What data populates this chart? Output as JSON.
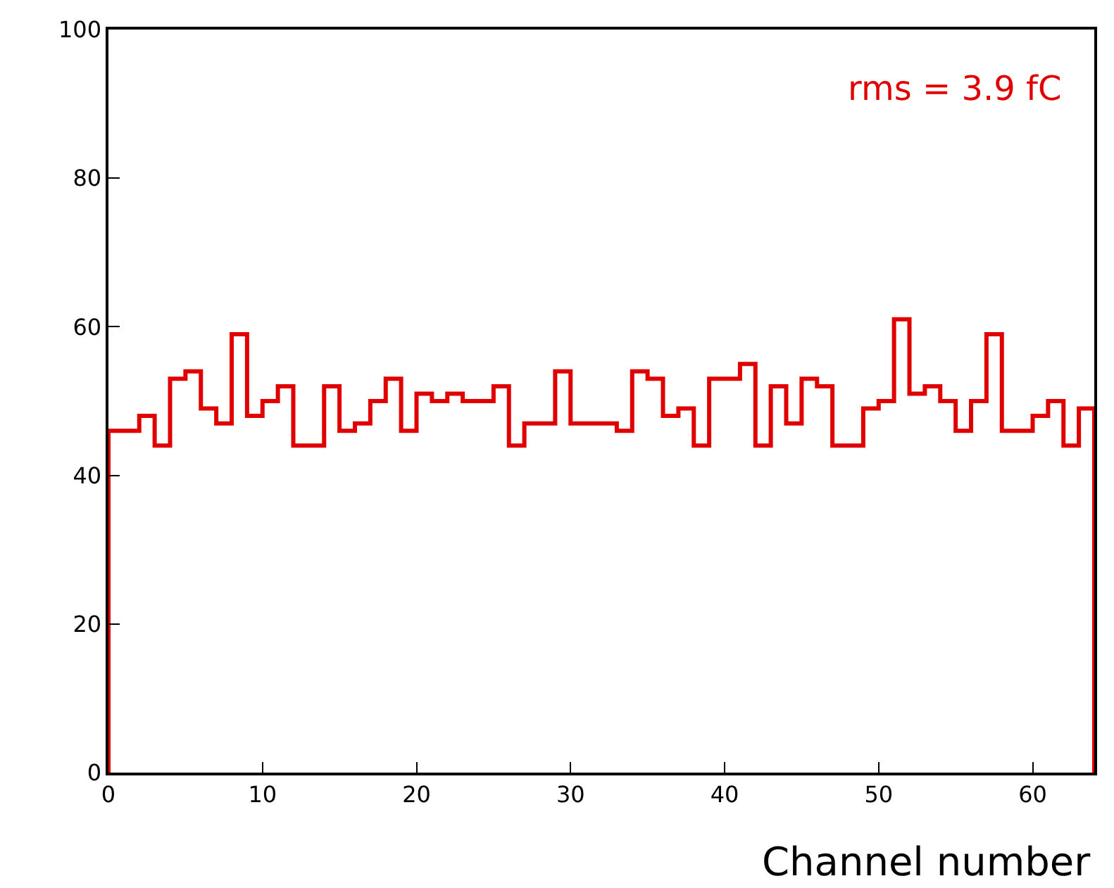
{
  "chart_data": {
    "type": "histogram",
    "xlabel": "Channel number",
    "bins": [
      0,
      1,
      2,
      3,
      4,
      5,
      6,
      7,
      8,
      9,
      10,
      11,
      12,
      13,
      14,
      15,
      16,
      17,
      18,
      19,
      20,
      21,
      22,
      23,
      24,
      25,
      26,
      27,
      28,
      29,
      30,
      31,
      32,
      33,
      34,
      35,
      36,
      37,
      38,
      39,
      40,
      41,
      42,
      43,
      44,
      45,
      46,
      47,
      48,
      49,
      50,
      51,
      52,
      53,
      54,
      55,
      56,
      57,
      58,
      59,
      60,
      61,
      62,
      63,
      64
    ],
    "values": [
      46,
      46,
      48,
      44,
      53,
      54,
      49,
      47,
      59,
      48,
      50,
      52,
      44,
      44,
      52,
      46,
      47,
      50,
      53,
      46,
      51,
      50,
      51,
      50,
      50,
      52,
      44,
      47,
      47,
      54,
      47,
      47,
      47,
      46,
      54,
      53,
      48,
      49,
      44,
      53,
      53,
      55,
      44,
      52,
      47,
      53,
      52,
      44,
      44,
      49,
      50,
      61,
      51,
      52,
      50,
      46,
      50,
      59,
      46,
      46,
      48,
      50,
      44,
      49
    ],
    "color": "#e00000",
    "xlim": [
      0,
      64
    ],
    "ylim": [
      0,
      100
    ],
    "xticks": [
      0,
      10,
      20,
      30,
      40,
      50,
      60
    ],
    "yticks": [
      0,
      20,
      40,
      60,
      80,
      100
    ],
    "annotations": [
      "rms = 3.9 fC"
    ]
  }
}
